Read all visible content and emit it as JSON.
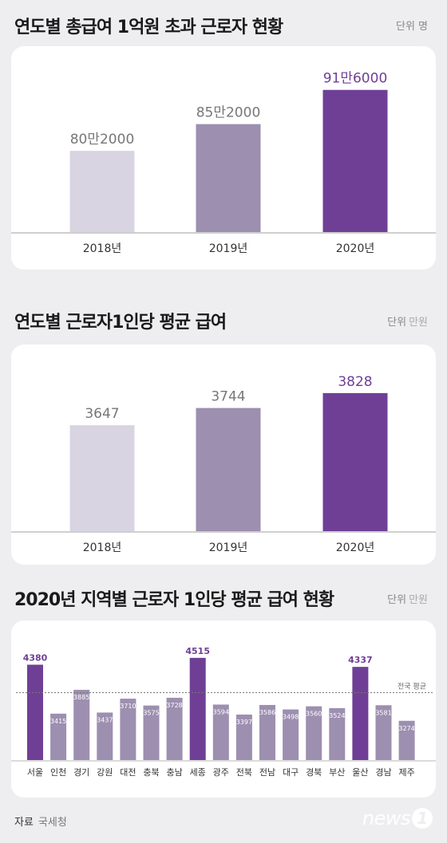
{
  "colors": {
    "light": "#d9d4e1",
    "mid": "#9d8fb0",
    "accent": "#6f3f96",
    "baseline": "#cfcfcf"
  },
  "section1": {
    "title": "연도별 총급여 1억원 초과 근로자 현황",
    "unit_main": "단위 명",
    "unit_sub": ""
  },
  "section2": {
    "title": "연도별 근로자1인당 평균 급여",
    "unit_main": "단위",
    "unit_sub": "만원"
  },
  "section3": {
    "title": "2020년 지역별 근로자 1인당 평균 급여 현황",
    "unit_main": "단위",
    "unit_sub": "만원",
    "avg_label": "전국 평균"
  },
  "footer": {
    "source_label": "자료",
    "source": "국세청",
    "logo_text": "news",
    "logo_num": "1"
  },
  "chart_data": [
    {
      "type": "bar",
      "title": "연도별 총급여 1억원 초과 근로자 현황",
      "categories": [
        "2018년",
        "2019년",
        "2020년"
      ],
      "values": [
        802000,
        852000,
        916000
      ],
      "value_labels": [
        "80만2000",
        "85만2000",
        "91만6000"
      ],
      "ylim": [
        650000,
        935000
      ]
    },
    {
      "type": "bar",
      "title": "연도별 근로자1인당 평균 급여",
      "categories": [
        "2018년",
        "2019년",
        "2020년"
      ],
      "values": [
        3647,
        3744,
        3828
      ],
      "value_labels": [
        "3647",
        "3744",
        "3828"
      ],
      "ylim": [
        3050,
        3850
      ]
    },
    {
      "type": "bar",
      "title": "2020년 지역별 근로자 1인당 평균 급여 현황",
      "categories": [
        "서울",
        "인천",
        "경기",
        "강원",
        "대전",
        "충북",
        "충남",
        "세종",
        "광주",
        "전북",
        "전남",
        "대구",
        "경북",
        "부산",
        "울산",
        "경남",
        "제주"
      ],
      "values": [
        4380,
        3415,
        3885,
        3437,
        3710,
        3575,
        3728,
        4515,
        3594,
        3397,
        3586,
        3498,
        3560,
        3524,
        4337,
        3581,
        3274
      ],
      "highlight": [
        "서울",
        "세종",
        "울산"
      ],
      "reference_line": {
        "label": "전국 평균",
        "value": 3828
      },
      "ylim": [
        2500,
        4560
      ]
    }
  ]
}
